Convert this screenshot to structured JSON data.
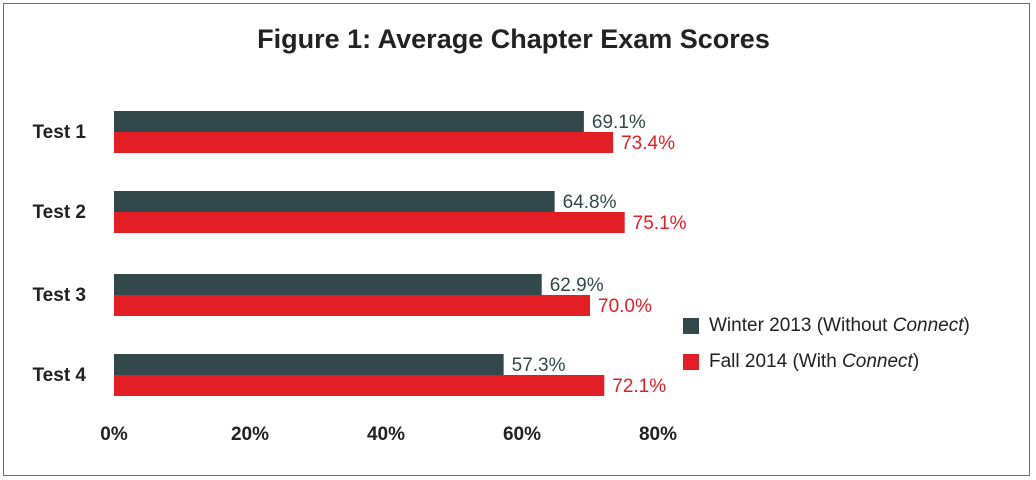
{
  "chart_data": {
    "type": "bar",
    "orientation": "horizontal",
    "title": "Figure 1: Average Chapter Exam Scores",
    "categories": [
      "Test 1",
      "Test 2",
      "Test 3",
      "Test 4"
    ],
    "series": [
      {
        "name": "Winter 2013 (Without Connect)",
        "name_prefix": "Winter 2013 (Without ",
        "name_italic": "Connect",
        "name_suffix": ")",
        "color": "#33484a",
        "values": [
          69.1,
          64.8,
          62.9,
          57.3
        ],
        "labels": [
          "69.1%",
          "64.8%",
          "62.9%",
          "57.3%"
        ]
      },
      {
        "name": "Fall 2014 (With Connect)",
        "name_prefix": "Fall 2014 (With ",
        "name_italic": "Connect",
        "name_suffix": ")",
        "color": "#e31e25",
        "values": [
          73.4,
          75.1,
          70.0,
          72.1
        ],
        "labels": [
          "73.4%",
          "75.1%",
          "70.0%",
          "72.1%"
        ]
      }
    ],
    "xlim": [
      0,
      80
    ],
    "xticks": [
      "0%",
      "20%",
      "40%",
      "60%",
      "80%"
    ],
    "legend_position": "right",
    "grid": false
  }
}
